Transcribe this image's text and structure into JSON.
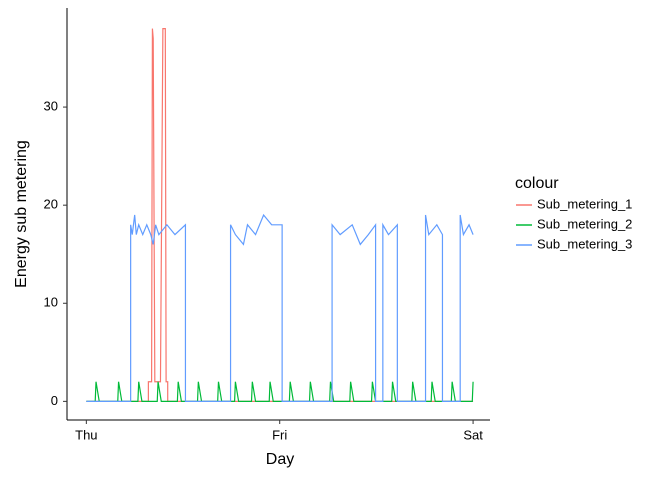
{
  "chart_data": {
    "type": "line",
    "x_label": "Day",
    "y_label": "Energy sub metering",
    "legend_title": "colour",
    "legend": "right",
    "xlim": [
      -2.4,
      50.1
    ],
    "xticks": [
      {
        "value": 0,
        "label": "Thu"
      },
      {
        "value": 24,
        "label": "Fri"
      },
      {
        "value": 48,
        "label": "Sat"
      }
    ],
    "ylim": [
      -1.9,
      40.1
    ],
    "yticks": [
      0,
      10,
      20,
      30
    ],
    "grid": false,
    "series": [
      {
        "name": "Sub_metering_1",
        "color": "#F8766D",
        "x": [
          0,
          7.7,
          7.7,
          8.1,
          8.2,
          8.3,
          8.5,
          9.2,
          9.5,
          9.8,
          9.9,
          10.1,
          10.1,
          48
        ],
        "values": [
          0,
          0,
          2,
          2,
          38,
          37,
          2,
          2,
          38,
          38,
          2,
          2,
          0,
          0
        ]
      },
      {
        "name": "Sub_metering_2",
        "color": "#00BA38",
        "x": [
          0,
          1.1,
          1.2,
          1.4,
          1.6,
          3.9,
          4.0,
          4.2,
          4.4,
          6.4,
          6.5,
          6.7,
          6.9,
          8.8,
          8.9,
          9.1,
          9.3,
          11.3,
          11.4,
          11.6,
          11.8,
          13.8,
          13.9,
          14.1,
          14.3,
          16.3,
          16.4,
          16.6,
          16.8,
          18.4,
          18.5,
          18.7,
          18.9,
          20.5,
          20.6,
          20.8,
          21.0,
          22.7,
          22.8,
          23.0,
          23.2,
          25.2,
          25.3,
          25.5,
          25.7,
          27.7,
          27.8,
          28.0,
          28.2,
          30.2,
          30.3,
          30.5,
          30.7,
          32.7,
          32.8,
          33.0,
          33.2,
          35.4,
          35.5,
          35.7,
          35.9,
          37.9,
          38.0,
          38.2,
          38.4,
          40.4,
          40.5,
          40.7,
          40.9,
          42.8,
          42.9,
          43.1,
          43.3,
          45.3,
          45.4,
          45.6,
          45.8,
          47.9,
          48
        ],
        "values": [
          0,
          0,
          2,
          1,
          0,
          0,
          2,
          1,
          0,
          0,
          2,
          1,
          0,
          0,
          2,
          1,
          0,
          0,
          2,
          1,
          0,
          0,
          2,
          1,
          0,
          0,
          2,
          1,
          0,
          0,
          2,
          1,
          0,
          0,
          2,
          1,
          0,
          0,
          2,
          1,
          0,
          0,
          2,
          1,
          0,
          0,
          2,
          1,
          0,
          0,
          2,
          1,
          0,
          0,
          2,
          1,
          0,
          0,
          2,
          1,
          0,
          0,
          2,
          1,
          0,
          0,
          2,
          1,
          0,
          0,
          2,
          1,
          0,
          0,
          2,
          1,
          0,
          0,
          2
        ]
      },
      {
        "name": "Sub_metering_3",
        "color": "#619CFF",
        "x": [
          0,
          5.5,
          5.5,
          5.7,
          6.0,
          6.2,
          6.5,
          7.0,
          7.5,
          8.0,
          8.3,
          8.6,
          9,
          10,
          11,
          12.3,
          12.3,
          17.9,
          17.9,
          18.5,
          19.5,
          20,
          21,
          22,
          23,
          24.3,
          24.3,
          30.5,
          30.5,
          31.5,
          33,
          34,
          35,
          35.9,
          35.9,
          36.8,
          36.8,
          37.5,
          38.6,
          38.6,
          42.1,
          42.1,
          42.5,
          43.5,
          44.2,
          44.2,
          46.4,
          46.4,
          46.8,
          47.5,
          48
        ],
        "values": [
          0,
          0,
          18,
          17,
          19,
          17,
          18,
          17,
          18,
          17,
          16,
          18,
          17,
          18,
          17,
          18,
          0,
          0,
          18,
          17,
          16,
          18,
          17,
          19,
          18,
          18,
          0,
          0,
          18,
          17,
          18,
          16,
          17,
          18,
          0,
          0,
          18,
          17,
          18,
          0,
          0,
          19,
          17,
          18,
          17,
          0,
          0,
          19,
          17,
          18,
          17
        ]
      }
    ]
  }
}
